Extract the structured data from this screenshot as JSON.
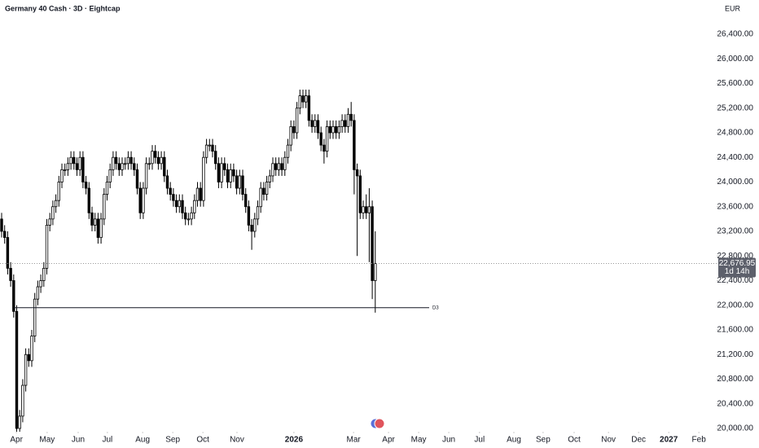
{
  "chart_data": {
    "type": "candlestick",
    "title": "Germany 40 Cash · 3D · Eightcap",
    "currency": "EUR",
    "up_color": "#ffffff",
    "down_color": "#000000",
    "wick_color": "#000000",
    "open": [
      23400,
      23200,
      23100,
      22600,
      22400,
      21900,
      20000,
      20200,
      20700,
      21200,
      21100,
      21500,
      22100,
      22300,
      22400,
      22600,
      23300,
      23400,
      23600,
      23700,
      24000,
      24200,
      24200,
      24300,
      24400,
      24300,
      24200,
      24400,
      24000,
      23900,
      23500,
      23300,
      23400,
      23100,
      23400,
      23800,
      24000,
      24200,
      24400,
      24300,
      24200,
      24300,
      24300,
      24400,
      24300,
      24200,
      23900,
      23500,
      23900,
      24300,
      24300,
      24500,
      24400,
      24300,
      24400,
      24100,
      23900,
      23800,
      23700,
      23600,
      23700,
      23500,
      23400,
      23400,
      23500,
      23700,
      23900,
      23700,
      24400,
      24600,
      24600,
      24500,
      24300,
      24000,
      24300,
      24200,
      24000,
      24200,
      24100,
      23900,
      24100,
      23800,
      23600,
      23300,
      23200,
      23400,
      23600,
      23900,
      23800,
      24000,
      24100,
      24300,
      24200,
      24300,
      24200,
      24400,
      24600,
      24900,
      24800,
      25200,
      25400,
      25300,
      25400,
      25000,
      24900,
      25000,
      24800,
      24600,
      24500,
      24900,
      24800,
      24900,
      24800,
      24900,
      25000,
      24900,
      25100,
      25000,
      24200,
      24100,
      23500,
      23600,
      23500,
      23600,
      22400
    ],
    "high": [
      23500,
      23300,
      23200,
      22700,
      22500,
      22000,
      20300,
      20800,
      21300,
      21300,
      21600,
      22200,
      22400,
      22500,
      22700,
      23400,
      23500,
      23700,
      23800,
      24100,
      24300,
      24300,
      24400,
      24500,
      24500,
      24400,
      24500,
      24500,
      24100,
      24000,
      23600,
      23500,
      23500,
      23500,
      23900,
      24100,
      24300,
      24500,
      24500,
      24400,
      24400,
      24400,
      24500,
      24500,
      24400,
      24300,
      24000,
      24000,
      24400,
      24400,
      24600,
      24600,
      24500,
      24500,
      24500,
      24200,
      24000,
      23900,
      23800,
      23800,
      23800,
      23600,
      23500,
      23600,
      23800,
      24000,
      24000,
      24500,
      24700,
      24700,
      24700,
      24600,
      24400,
      24400,
      24400,
      24300,
      24300,
      24300,
      24200,
      24200,
      24200,
      23900,
      23700,
      23400,
      23500,
      23700,
      24000,
      24000,
      24100,
      24200,
      24400,
      24400,
      24400,
      24400,
      24500,
      24700,
      25000,
      25000,
      25300,
      25500,
      25500,
      25500,
      25500,
      25100,
      25100,
      25100,
      24900,
      24700,
      25000,
      25000,
      25000,
      25000,
      25000,
      25100,
      25100,
      25200,
      25300,
      25100,
      24300,
      24200,
      23700,
      23800,
      23900,
      23700,
      23200
    ],
    "low": [
      23100,
      23000,
      22500,
      22300,
      21800,
      19900,
      19900,
      20100,
      20600,
      21000,
      21000,
      21400,
      22000,
      22200,
      22300,
      22500,
      23200,
      23300,
      23500,
      23600,
      23900,
      24100,
      24100,
      24200,
      24200,
      24100,
      24100,
      23900,
      23800,
      23400,
      23200,
      23200,
      23000,
      23000,
      23300,
      23700,
      23900,
      24100,
      24200,
      24100,
      24100,
      24200,
      24200,
      24200,
      24100,
      23800,
      23400,
      23400,
      23800,
      24200,
      24200,
      24300,
      24200,
      24200,
      24000,
      23800,
      23700,
      23600,
      23500,
      23500,
      23400,
      23300,
      23300,
      23300,
      23400,
      23600,
      23600,
      23600,
      24300,
      24500,
      24400,
      24200,
      23900,
      23900,
      24100,
      23900,
      23900,
      24000,
      23800,
      23800,
      23700,
      23500,
      23200,
      22900,
      23100,
      23300,
      23500,
      23700,
      23700,
      23900,
      24000,
      24100,
      24100,
      24100,
      24100,
      24300,
      24500,
      24700,
      24700,
      25100,
      25200,
      25200,
      24900,
      24800,
      24800,
      24700,
      24500,
      24300,
      24400,
      24700,
      24700,
      24700,
      24700,
      24800,
      24800,
      24800,
      24900,
      23800,
      22800,
      23400,
      23400,
      23400,
      22700,
      22100,
      21880
    ],
    "close": [
      23200,
      23100,
      22600,
      22400,
      21900,
      20000,
      20200,
      20700,
      21200,
      21100,
      21500,
      22100,
      22300,
      22400,
      22600,
      23300,
      23400,
      23600,
      23700,
      24000,
      24200,
      24200,
      24300,
      24400,
      24300,
      24200,
      24400,
      24000,
      23900,
      23500,
      23300,
      23400,
      23100,
      23400,
      23800,
      24000,
      24200,
      24400,
      24300,
      24200,
      24300,
      24300,
      24400,
      24300,
      24200,
      23900,
      23500,
      23900,
      24300,
      24300,
      24500,
      24400,
      24300,
      24400,
      24100,
      23900,
      23800,
      23700,
      23600,
      23700,
      23500,
      23400,
      23400,
      23500,
      23700,
      23900,
      23700,
      24400,
      24600,
      24600,
      24500,
      24300,
      24000,
      24300,
      24200,
      24000,
      24200,
      24100,
      23900,
      24100,
      23800,
      23600,
      23300,
      23200,
      23400,
      23600,
      23900,
      23800,
      24000,
      24100,
      24300,
      24200,
      24300,
      24200,
      24400,
      24600,
      24900,
      24800,
      25200,
      25400,
      25300,
      25400,
      25000,
      24900,
      25000,
      24800,
      24600,
      24500,
      24900,
      24800,
      24900,
      24800,
      24900,
      25000,
      24900,
      25100,
      25000,
      24200,
      24100,
      23500,
      23600,
      23500,
      23600,
      22400,
      22676.95
    ],
    "last_price": {
      "value": 22676.95,
      "label": "22,676.95"
    },
    "countdown": "1d 14h",
    "level": {
      "value": 21960,
      "label": "D3"
    },
    "xlim": [
      -0.54,
      237.3
    ],
    "xticks": [
      {
        "value": 4.9,
        "label": "Apr"
      },
      {
        "value": 15.1,
        "label": "May"
      },
      {
        "value": 25.4,
        "label": "Jun"
      },
      {
        "value": 35.1,
        "label": "Jul"
      },
      {
        "value": 46.8,
        "label": "Aug"
      },
      {
        "value": 56.8,
        "label": "Sep"
      },
      {
        "value": 66.8,
        "label": "Oct"
      },
      {
        "value": 78.1,
        "label": "Nov"
      },
      {
        "value": 97.0,
        "label": "2026"
      },
      {
        "value": 116.8,
        "label": "Mar"
      },
      {
        "value": 128.4,
        "label": "Apr"
      },
      {
        "value": 138.4,
        "label": "May"
      },
      {
        "value": 148.4,
        "label": "Jun"
      },
      {
        "value": 158.6,
        "label": "Jul"
      },
      {
        "value": 170.0,
        "label": "Aug"
      },
      {
        "value": 179.7,
        "label": "Sep"
      },
      {
        "value": 190.0,
        "label": "Oct"
      },
      {
        "value": 201.4,
        "label": "Nov"
      },
      {
        "value": 211.4,
        "label": "Dec"
      },
      {
        "value": 221.4,
        "label": "2027"
      },
      {
        "value": 231.4,
        "label": "Feb"
      }
    ],
    "ylim": [
      19815,
      26955
    ],
    "yticks": [
      {
        "value": 20000,
        "label": "20,000.00"
      },
      {
        "value": 20400,
        "label": "20,400.00"
      },
      {
        "value": 20800,
        "label": "20,800.00"
      },
      {
        "value": 21200,
        "label": "21,200.00"
      },
      {
        "value": 21600,
        "label": "21,600.00"
      },
      {
        "value": 22000,
        "label": "22,000.00"
      },
      {
        "value": 22400,
        "label": "22,400.00"
      },
      {
        "value": 22800,
        "label": "22,800.00"
      },
      {
        "value": 23200,
        "label": "23,200.00"
      },
      {
        "value": 23600,
        "label": "23,600.00"
      },
      {
        "value": 24000,
        "label": "24,000.00"
      },
      {
        "value": 24400,
        "label": "24,400.00"
      },
      {
        "value": 24800,
        "label": "24,800.00"
      },
      {
        "value": 25200,
        "label": "25,200.00"
      },
      {
        "value": 25600,
        "label": "25,600.00"
      },
      {
        "value": 26000,
        "label": "26,000.00"
      },
      {
        "value": 26400,
        "label": "26,400.00"
      }
    ],
    "grid": false
  }
}
